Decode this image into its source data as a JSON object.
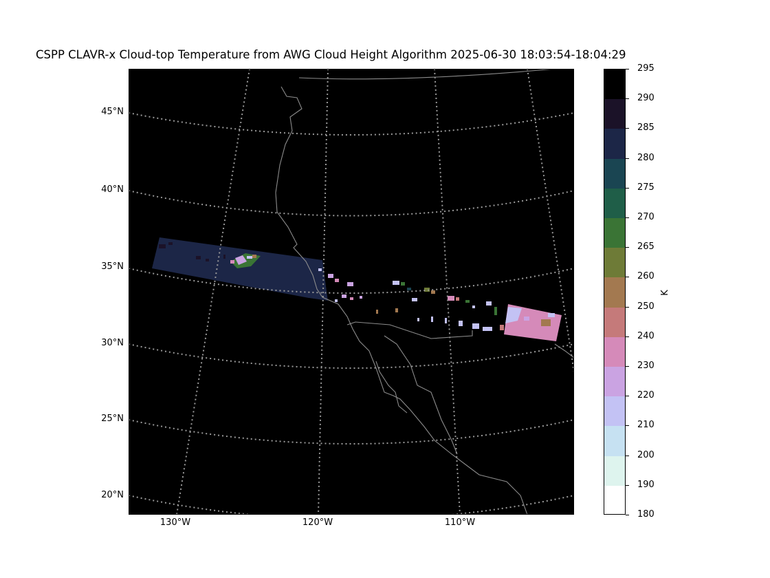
{
  "title": "CSPP CLAVR-x Cloud-top Temperature from AWG Cloud Height Algorithm 2025-06-30 18:03:54-18:04:29",
  "map": {
    "latitude_labels": [
      {
        "lat": 45,
        "text": "45°N"
      },
      {
        "lat": 40,
        "text": "40°N"
      },
      {
        "lat": 35,
        "text": "35°N"
      },
      {
        "lat": 30,
        "text": "30°N"
      },
      {
        "lat": 25,
        "text": "25°N"
      },
      {
        "lat": 20,
        "text": "20°N"
      }
    ],
    "longitude_labels": [
      {
        "lon": -130,
        "text": "130°W"
      },
      {
        "lon": -120,
        "text": "120°W"
      },
      {
        "lon": -110,
        "text": "110°W"
      }
    ],
    "background_color": "#000000",
    "coastline_color": "#8c8c8c",
    "gridline_color": "#9a9a9a"
  },
  "colorbar": {
    "unit": "K",
    "tick_labels": [
      "295",
      "290",
      "285",
      "280",
      "275",
      "270",
      "265",
      "260",
      "250",
      "240",
      "230",
      "220",
      "210",
      "200",
      "190",
      "180"
    ],
    "segments_top_to_bottom": [
      {
        "range": "290-295",
        "color": "#000000"
      },
      {
        "range": "285-290",
        "color": "#1b1228"
      },
      {
        "range": "280-285",
        "color": "#1c2647"
      },
      {
        "range": "275-280",
        "color": "#1a4552"
      },
      {
        "range": "270-275",
        "color": "#1f5e48"
      },
      {
        "range": "265-270",
        "color": "#3a7435"
      },
      {
        "range": "260-265",
        "color": "#6e7b37"
      },
      {
        "range": "250-260",
        "color": "#a37950"
      },
      {
        "range": "240-250",
        "color": "#c57a7a"
      },
      {
        "range": "230-240",
        "color": "#d58ab9"
      },
      {
        "range": "220-230",
        "color": "#caa3e2"
      },
      {
        "range": "210-220",
        "color": "#c3c2f4"
      },
      {
        "range": "200-210",
        "color": "#c6e1f2"
      },
      {
        "range": "190-200",
        "color": "#def4ee"
      },
      {
        "range": "180-190",
        "color": "#ffffff"
      }
    ]
  }
}
